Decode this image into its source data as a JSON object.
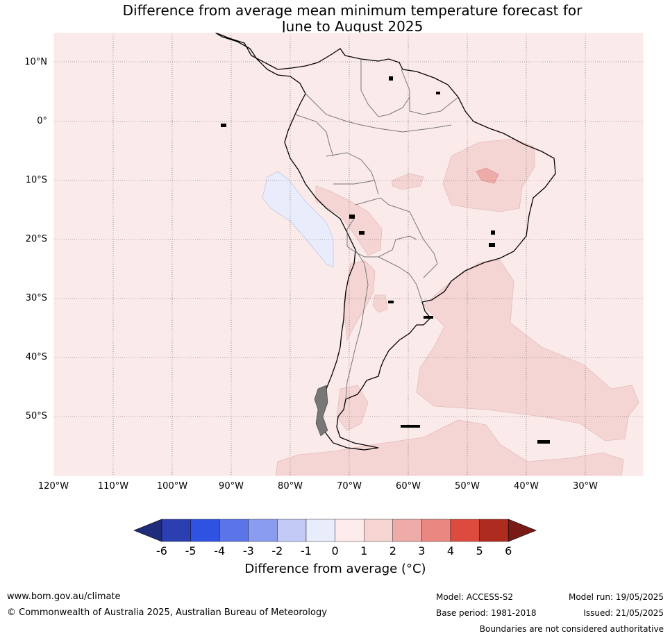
{
  "title": {
    "line1": "Difference from average mean minimum temperature forecast for",
    "line2": "June to August 2025"
  },
  "map": {
    "region": "South America",
    "background_anomaly_color": "#fbeaea",
    "lat_labels": [
      "10°N",
      "0°",
      "10°S",
      "20°S",
      "30°S",
      "40°S",
      "50°S"
    ],
    "lon_labels": [
      "120°W",
      "110°W",
      "100°W",
      "90°W",
      "80°W",
      "70°W",
      "60°W",
      "50°W",
      "40°W",
      "30°W"
    ],
    "anomaly_regions": [
      {
        "area": "eastern Brazil",
        "anomaly": "1 to 2"
      },
      {
        "area": "eastern Brazil core",
        "anomaly": "2 to 3"
      },
      {
        "area": "Bolivia / northern Argentina",
        "anomaly": "1 to 2"
      },
      {
        "area": "southwest Atlantic",
        "anomaly": "1 to 2"
      },
      {
        "area": "Southern Ocean",
        "anomaly": "1 to 2"
      },
      {
        "area": "off coast of Peru",
        "anomaly": "-1 to 0"
      }
    ]
  },
  "colorbar": {
    "ticks": [
      "-6",
      "-5",
      "-4",
      "-3",
      "-2",
      "-1",
      "0",
      "1",
      "2",
      "3",
      "4",
      "5",
      "6"
    ],
    "colors": [
      "#1f2c7a",
      "#2b3fb0",
      "#3052e3",
      "#5b74e8",
      "#8a9cf0",
      "#c2c9f5",
      "#e9ecfb",
      "#fcebea",
      "#f5d4d2",
      "#eeaba7",
      "#e98780",
      "#dc4b3d",
      "#ae2b20",
      "#7a1a16"
    ],
    "label": "Difference from average (°C)"
  },
  "footer": {
    "website": "www.bom.gov.au/climate",
    "copyright": "© Commonwealth of Australia 2025, Australian Bureau of Meteorology",
    "model": "Model: ACCESS-S2",
    "base_period": "Base period: 1981-2018",
    "model_run": "Model run: 19/05/2025",
    "issued": "Issued: 21/05/2025",
    "disclaimer": "Boundaries are not considered authoritative"
  }
}
